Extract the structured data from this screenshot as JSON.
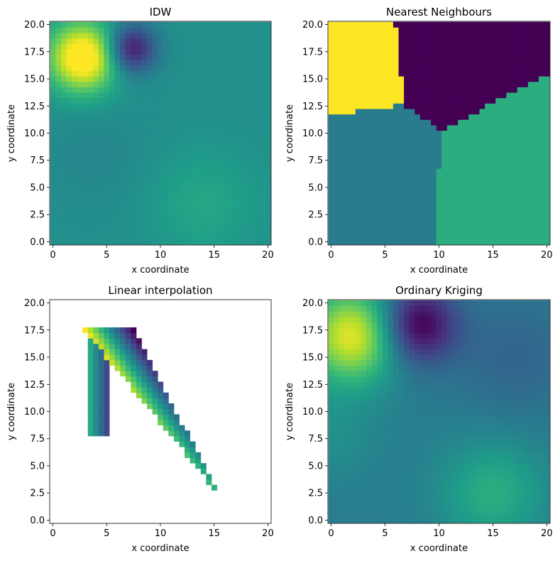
{
  "chart_data": [
    {
      "type": "heatmap",
      "title": "IDW",
      "xlabel": "x coordinate",
      "ylabel": "y coordinate",
      "xlim": [
        -0.3,
        20.3
      ],
      "ylim": [
        -0.3,
        20.3
      ],
      "xticks": [
        0,
        5,
        10,
        15,
        20
      ],
      "yticks": [
        0.0,
        2.5,
        5.0,
        7.5,
        10.0,
        12.5,
        15.0,
        17.5,
        20.0
      ],
      "grid_step": 0.5,
      "blobs": [
        {
          "x": 2.8,
          "y": 17.0,
          "sigma": 2.2,
          "amp": 0.62
        },
        {
          "x": 7.3,
          "y": 17.8,
          "sigma": 1.6,
          "amp": -0.45
        },
        {
          "x": 14.0,
          "y": 3.5,
          "sigma": 3.5,
          "amp": 0.09
        },
        {
          "x": 4.0,
          "y": 8.0,
          "sigma": 3.5,
          "amp": -0.04
        }
      ],
      "base_value": 0.5
    },
    {
      "type": "heatmap",
      "title": "Nearest Neighbours",
      "xlabel": "x coordinate",
      "ylabel": "y coordinate",
      "xlim": [
        -0.3,
        20.3
      ],
      "ylim": [
        -0.3,
        20.3
      ],
      "xticks": [
        0,
        5,
        10,
        15,
        20
      ],
      "yticks": [
        0.0,
        2.5,
        5.0,
        7.5,
        10.0,
        12.5,
        15.0,
        17.5,
        20.0
      ],
      "grid_step": 0.5,
      "sites": [
        {
          "x": 1.5,
          "y": 17.0,
          "value": 1.0
        },
        {
          "x": 11.0,
          "y": 18.0,
          "value": 0.0
        },
        {
          "x": 3.0,
          "y": 7.0,
          "value": 0.42
        },
        {
          "x": 17.0,
          "y": 6.5,
          "value": 0.62
        }
      ]
    },
    {
      "type": "heatmap",
      "title": "Linear interpolation",
      "xlabel": "x coordinate",
      "ylabel": "y coordinate",
      "xlim": [
        -0.3,
        20.3
      ],
      "ylim": [
        -0.3,
        20.3
      ],
      "xticks": [
        0,
        5,
        10,
        15,
        20
      ],
      "yticks": [
        0.0,
        2.5,
        5.0,
        7.5,
        10.0,
        12.5,
        15.0,
        17.5,
        20.0
      ],
      "grid_step": 0.5,
      "triangle": [
        {
          "x": 3.0,
          "y": 17.5,
          "value": 1.0
        },
        {
          "x": 7.5,
          "y": 17.5,
          "value": 0.0
        },
        {
          "x": 15.0,
          "y": 3.0,
          "value": 0.62
        }
      ],
      "fourth_point": {
        "x": 4.0,
        "y": 8.0,
        "value": 0.45
      }
    },
    {
      "type": "heatmap",
      "title": "Ordinary Kriging",
      "xlabel": "x coordinate",
      "ylabel": "y coordinate",
      "xlim": [
        -0.3,
        20.3
      ],
      "ylim": [
        -0.3,
        20.3
      ],
      "xticks": [
        0,
        5,
        10,
        15,
        20
      ],
      "yticks": [
        0.0,
        2.5,
        5.0,
        7.5,
        10.0,
        12.5,
        15.0,
        17.5,
        20.0
      ],
      "grid_step": 0.5,
      "blobs": [
        {
          "x": 2.0,
          "y": 17.0,
          "sigma": 3.0,
          "amp": 0.55
        },
        {
          "x": 8.0,
          "y": 18.0,
          "sigma": 2.5,
          "amp": -0.45
        },
        {
          "x": 15.0,
          "y": 2.5,
          "sigma": 3.5,
          "amp": 0.2
        },
        {
          "x": 0.0,
          "y": 8.0,
          "sigma": 3.0,
          "amp": 0.08
        },
        {
          "x": 17.0,
          "y": 15.0,
          "sigma": 4.0,
          "amp": -0.1
        }
      ],
      "base_value": 0.42
    }
  ],
  "colormap": "viridis"
}
